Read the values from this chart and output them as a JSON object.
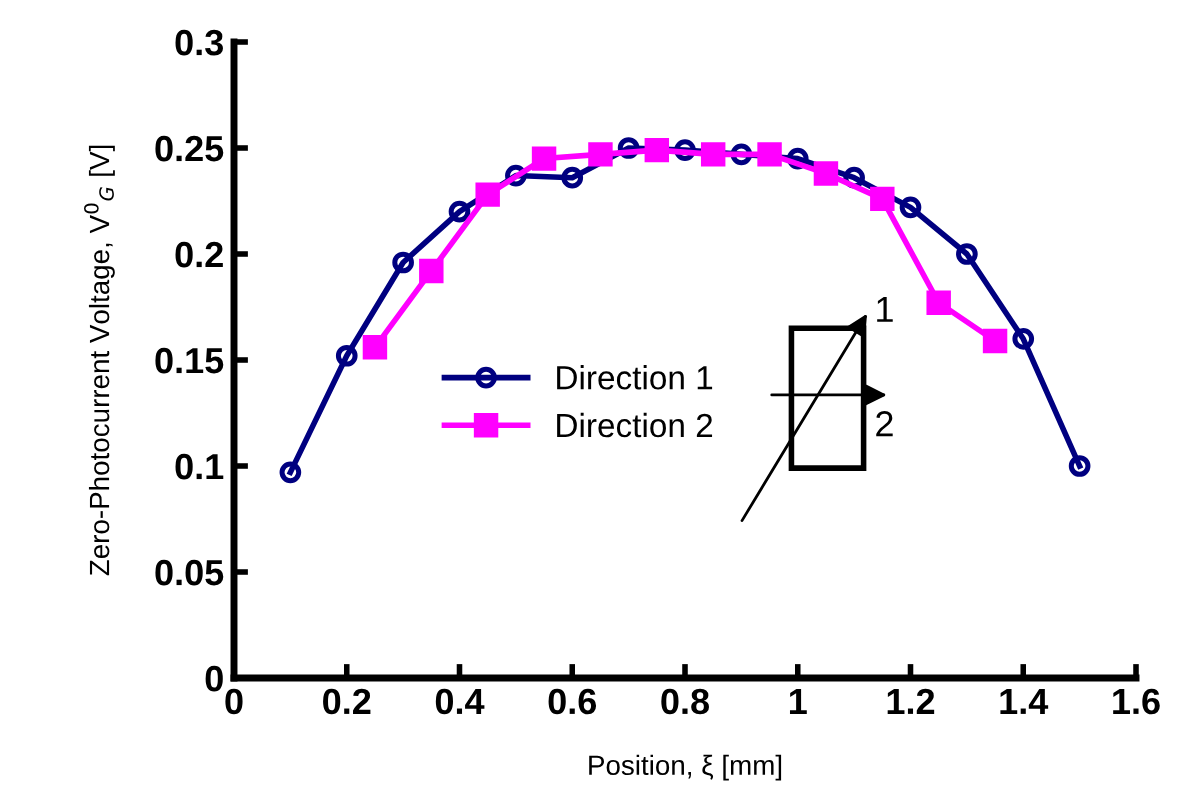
{
  "chart_data": {
    "type": "line",
    "xlabel": "Position, ξ [mm]",
    "ylabel": "Zero-Photocurrent Voltage, V$^{0}$$_{G}$ [V]",
    "xlim": [
      0,
      1.6
    ],
    "xticks": [
      0,
      0.2,
      0.4,
      0.6,
      0.8,
      1,
      1.2,
      1.4,
      1.6
    ],
    "ylim": [
      0,
      0.3
    ],
    "yticks": [
      0,
      0.05,
      0.1,
      0.15,
      0.2,
      0.25,
      0.3
    ],
    "grid": false,
    "legend": "center left",
    "series": [
      {
        "name": "Direction 1",
        "color": "#000080",
        "marker": "circle",
        "x": [
          0.1,
          0.2,
          0.3,
          0.4,
          0.5,
          0.6,
          0.7,
          0.8,
          0.9,
          1.0,
          1.1,
          1.2,
          1.3,
          1.4,
          1.5
        ],
        "values": [
          0.097,
          0.152,
          0.196,
          0.22,
          0.237,
          0.236,
          0.25,
          0.249,
          0.247,
          0.245,
          0.236,
          0.222,
          0.2,
          0.16,
          0.1
        ]
      },
      {
        "name": "Direction 2",
        "color": "#ff00ff",
        "marker": "square",
        "x": [
          0.25,
          0.35,
          0.45,
          0.55,
          0.65,
          0.75,
          0.85,
          0.95,
          1.05,
          1.15,
          1.25,
          1.35
        ],
        "values": [
          0.156,
          0.192,
          0.228,
          0.245,
          0.247,
          0.249,
          0.247,
          0.247,
          0.238,
          0.226,
          0.177,
          0.159
        ]
      }
    ],
    "annotations": [
      "1",
      "2"
    ]
  }
}
